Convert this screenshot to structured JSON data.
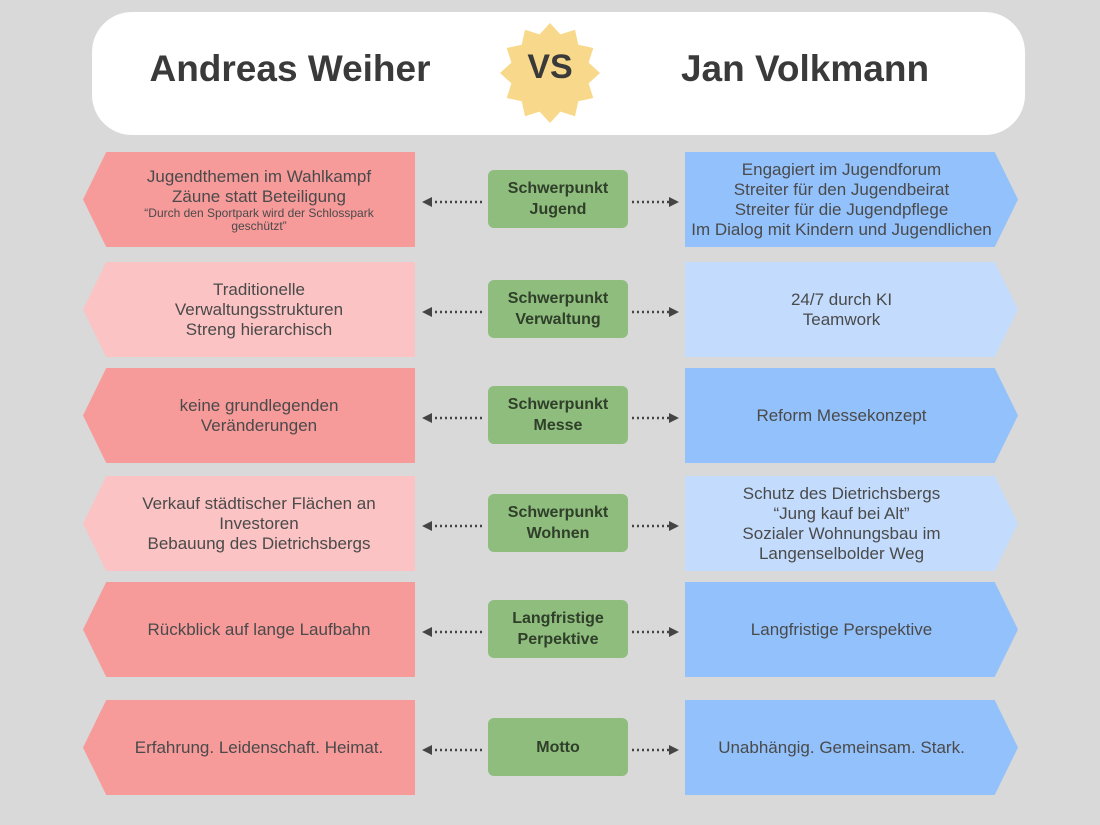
{
  "header": {
    "left": "Andreas Weiher",
    "vs": "VS",
    "right": "Jan Volkmann"
  },
  "rows": [
    {
      "topic": [
        "Schwerpunkt",
        "Jugend"
      ],
      "left_color": "#f79a9a",
      "right_color": "#93c1fb",
      "left": [
        "Jugendthemen im Wahlkampf",
        "Zäune statt Beteiligung"
      ],
      "left_note": [
        "“Durch den Sportpark wird der Schlosspark",
        "geschützt”"
      ],
      "right": [
        "Engagiert im Jugendforum",
        "Streiter für den Jugendbeirat",
        "Streiter für die Jugendpflege",
        "Im Dialog mit Kindern und Jugendlichen"
      ]
    },
    {
      "topic": [
        "Schwerpunkt",
        "Verwaltung"
      ],
      "left_color": "#fbc3c3",
      "right_color": "#c3dcfd",
      "left": [
        "Traditionelle",
        "Verwaltungsstrukturen",
        "Streng hierarchisch"
      ],
      "right": [
        "24/7 durch KI",
        "Teamwork"
      ]
    },
    {
      "topic": [
        "Schwerpunkt",
        "Messe"
      ],
      "left_color": "#f79a9a",
      "right_color": "#93c1fb",
      "left": [
        "keine grundlegenden",
        "Veränderungen"
      ],
      "right": [
        "Reform Messekonzept"
      ]
    },
    {
      "topic": [
        "Schwerpunkt",
        "Wohnen"
      ],
      "left_color": "#fbc3c3",
      "right_color": "#c3dcfd",
      "left": [
        "Verkauf städtischer Flächen an",
        "Investoren",
        "Bebauung des Dietrichsbergs"
      ],
      "right": [
        "Schutz des Dietrichsbergs",
        "“Jung kauf bei Alt”",
        "Sozialer Wohnungsbau im",
        "Langenselbolder Weg"
      ]
    },
    {
      "topic": [
        "Langfristige",
        "Perpektive"
      ],
      "left_color": "#f79a9a",
      "right_color": "#93c1fb",
      "left": [
        "Rückblick auf lange Laufbahn"
      ],
      "right": [
        "Langfristige Perspektive"
      ]
    },
    {
      "topic": [
        "Motto"
      ],
      "left_color": "#f79a9a",
      "right_color": "#93c1fb",
      "left": [
        "Erfahrung. Leidenschaft. Heimat."
      ],
      "right": [
        "Unabhängig. Gemeinsam. Stark."
      ]
    }
  ]
}
